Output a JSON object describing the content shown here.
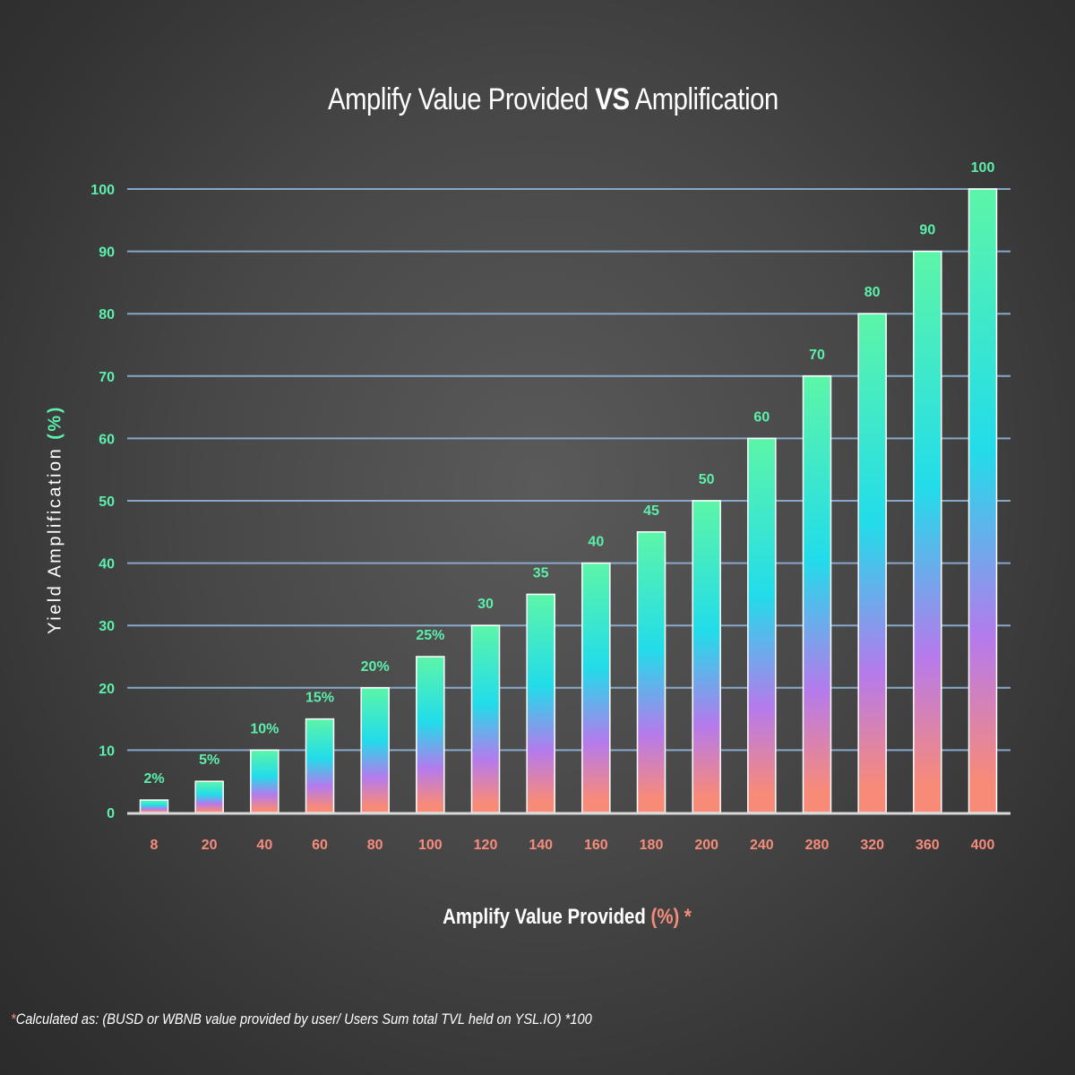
{
  "chart_data": {
    "type": "bar",
    "title_part1": "Amplify Value Provided ",
    "title_vs": "VS",
    "title_part2": " Amplification",
    "ylabel_text": "Yield Amplification ",
    "ylabel_accent": "(%)",
    "xlabel_text": "Amplify Value Provided ",
    "xlabel_accent": "(%) *",
    "categories": [
      "8",
      "20",
      "40",
      "60",
      "80",
      "100",
      "120",
      "140",
      "160",
      "180",
      "200",
      "240",
      "280",
      "320",
      "360",
      "400"
    ],
    "values": [
      2,
      5,
      10,
      15,
      20,
      25,
      30,
      35,
      40,
      45,
      50,
      60,
      70,
      80,
      90,
      100
    ],
    "data_labels": [
      "2%",
      "5%",
      "10%",
      "15%",
      "20%",
      "25%",
      "30",
      "35",
      "40",
      "45",
      "50",
      "60",
      "70",
      "80",
      "90",
      "100"
    ],
    "y_ticks": [
      0,
      10,
      20,
      30,
      40,
      50,
      60,
      70,
      80,
      90,
      100
    ],
    "ylim": [
      0,
      100
    ],
    "grid": true,
    "colors": {
      "bar_top": "#5cf5a8",
      "bar_mid": "#22dcea",
      "bar_purple": "#b57aec",
      "bar_bottom": "#f88a78",
      "y_tick": "#5cf0ad",
      "x_tick": "#f58c7c",
      "grid": "#8fb2d8"
    }
  },
  "footnote": {
    "star": "*",
    "text": "Calculated as: (BUSD or WBNB value provided by user/ Users Sum total TVL held on YSL.IO) *100"
  }
}
